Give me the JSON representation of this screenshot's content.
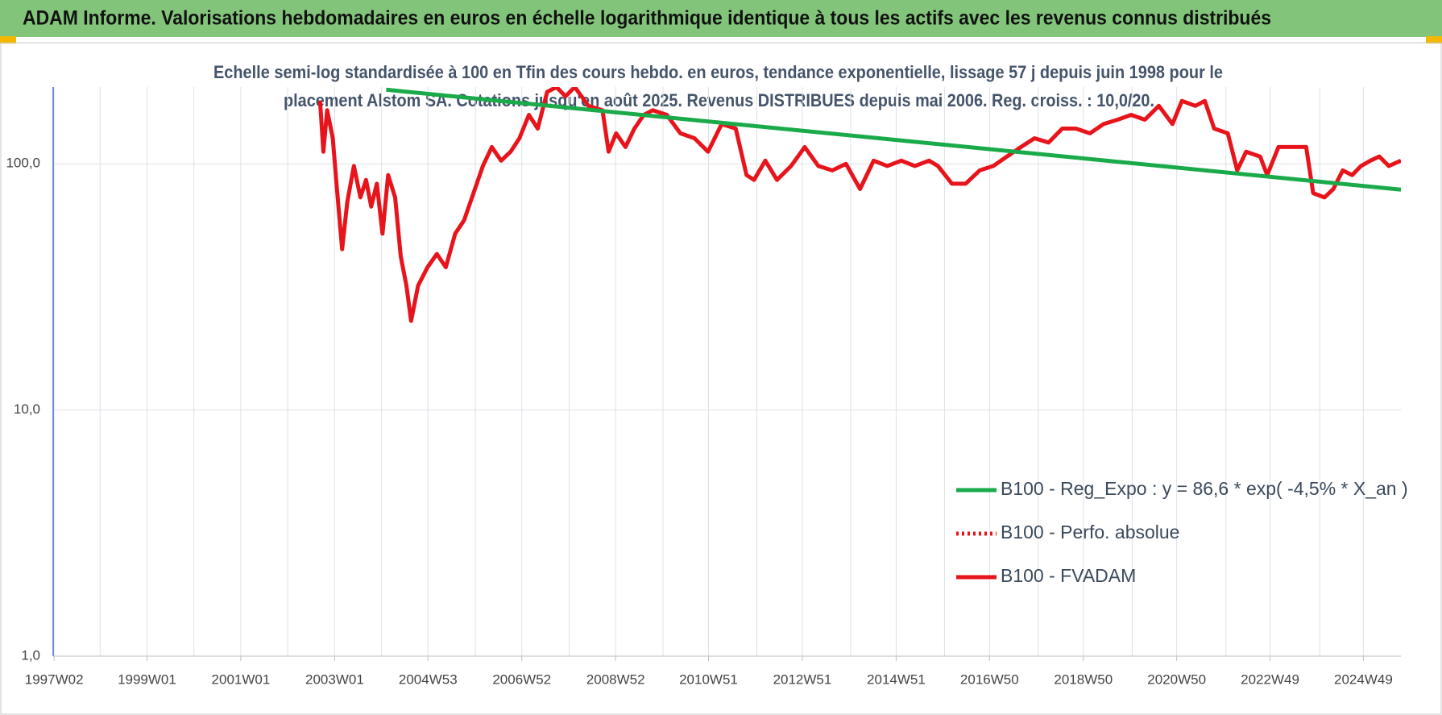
{
  "chart_data": {
    "type": "line",
    "title": "ADAM Informe. Valorisations hebdomadaires en euros en échelle logarithmique identique à tous les actifs avec les revenus connus distribués",
    "subtitle": [
      "Echelle semi-log standardisée à 100 en Tfin des cours hebdo. en euros, tendance exponentielle, lissage 57 j depuis juin 1998 pour le",
      "placement Alstom SA. Cotations jusqu'en août 2025. Revenus DISTRIBUES depuis mai 2006. Reg. croiss. : 10,0/20."
    ],
    "log_y": true,
    "grid": true,
    "legend": "right",
    "xlim": [
      1997.0,
      2025.73
    ],
    "xticks": [
      {
        "value": 1997.02,
        "label": "1997W02"
      },
      {
        "value": 1999.0,
        "label": "1999W01"
      },
      {
        "value": 2001.0,
        "label": "2001W01"
      },
      {
        "value": 2003.0,
        "label": "2003W01"
      },
      {
        "value": 2004.99,
        "label": "2004W53"
      },
      {
        "value": 2006.99,
        "label": "2006W52"
      },
      {
        "value": 2008.99,
        "label": "2008W52"
      },
      {
        "value": 2010.97,
        "label": "2010W51"
      },
      {
        "value": 2012.97,
        "label": "2012W51"
      },
      {
        "value": 2014.97,
        "label": "2014W51"
      },
      {
        "value": 2016.96,
        "label": "2016W50"
      },
      {
        "value": 2018.96,
        "label": "2018W50"
      },
      {
        "value": 2020.95,
        "label": "2020W50"
      },
      {
        "value": 2022.94,
        "label": "2022W49"
      },
      {
        "value": 2024.93,
        "label": "2024W49"
      }
    ],
    "xminorticks": [
      1998.0,
      2000.0,
      2002.0,
      2004.0,
      2006.0,
      2008.0,
      2010.0,
      2012.0,
      2014.0,
      2016.0,
      2018.0,
      2020.0,
      2022.0,
      2024.0
    ],
    "ylim": [
      1,
      205
    ],
    "yticks": [
      {
        "value": 1,
        "label": "1,0"
      },
      {
        "value": 10,
        "label": "10,0"
      },
      {
        "value": 100,
        "label": "100,0"
      }
    ],
    "series": [
      {
        "name": "B100 - Reg_Expo : y = 86,6 * exp( -4,5% *  X_an )",
        "color": "#1aaa4a",
        "style": "solid",
        "x": [
          2004.1,
          2025.73
        ],
        "values": [
          200,
          78.5
        ]
      },
      {
        "name": "B100 - Perfo. absolue",
        "color": "#e8141b",
        "style": "dotted",
        "x": [],
        "values": []
      },
      {
        "name": "B100 - FVADAM",
        "color": "#e8141b",
        "style": "solid",
        "x": [
          2002.69,
          2002.76,
          2002.84,
          2002.96,
          2003.04,
          2003.16,
          2003.27,
          2003.41,
          2003.55,
          2003.67,
          2003.78,
          2003.9,
          2004.02,
          2004.14,
          2004.29,
          2004.41,
          2004.53,
          2004.63,
          2004.78,
          2004.98,
          2005.18,
          2005.37,
          2005.57,
          2005.76,
          2005.96,
          2006.16,
          2006.35,
          2006.55,
          2006.75,
          2006.94,
          2007.14,
          2007.33,
          2007.53,
          2007.73,
          2007.92,
          2008.12,
          2008.41,
          2008.71,
          2008.84,
          2009.0,
          2009.2,
          2009.39,
          2009.59,
          2009.78,
          2010.08,
          2010.37,
          2010.67,
          2010.96,
          2011.25,
          2011.55,
          2011.78,
          2011.94,
          2012.18,
          2012.43,
          2012.73,
          2013.02,
          2013.31,
          2013.61,
          2013.9,
          2014.2,
          2014.49,
          2014.78,
          2015.08,
          2015.37,
          2015.67,
          2015.86,
          2016.16,
          2016.45,
          2016.75,
          2017.04,
          2017.33,
          2017.63,
          2017.92,
          2018.22,
          2018.51,
          2018.8,
          2019.1,
          2019.39,
          2019.69,
          2019.98,
          2020.27,
          2020.57,
          2020.86,
          2021.06,
          2021.35,
          2021.55,
          2021.75,
          2022.04,
          2022.24,
          2022.43,
          2022.73,
          2022.88,
          2023.12,
          2023.41,
          2023.71,
          2023.86,
          2024.1,
          2024.29,
          2024.49,
          2024.69,
          2024.88,
          2025.08,
          2025.27,
          2025.47,
          2025.73
        ],
        "values": [
          180,
          112,
          165,
          127,
          83,
          45,
          70,
          98,
          73,
          86,
          67,
          83,
          52,
          90,
          73,
          42,
          32,
          23,
          32,
          38,
          43,
          38,
          52,
          59,
          76,
          98,
          117,
          103,
          112,
          127,
          158,
          139,
          196,
          205,
          188,
          205,
          172,
          165,
          112,
          133,
          117,
          139,
          158,
          165,
          158,
          133,
          127,
          112,
          145,
          139,
          90,
          86,
          103,
          86,
          98,
          117,
          98,
          94,
          100,
          79,
          103,
          98,
          103,
          98,
          103,
          98,
          83,
          83,
          94,
          98,
          107,
          117,
          127,
          122,
          139,
          139,
          133,
          145,
          151,
          158,
          151,
          172,
          145,
          180,
          172,
          180,
          139,
          133,
          94,
          112,
          107,
          90,
          117,
          117,
          117,
          76,
          73,
          79,
          94,
          90,
          98,
          103,
          107,
          98,
          103
        ]
      }
    ]
  }
}
